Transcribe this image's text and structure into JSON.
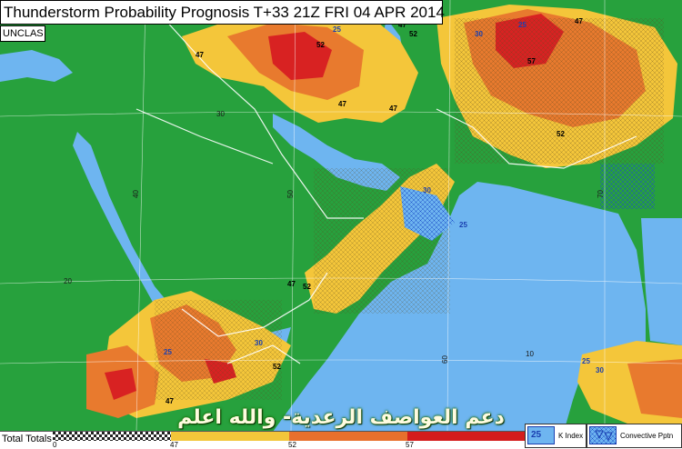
{
  "title": "Thunderstorm Probability Prognosis T+33 21Z FRI 04 APR 2014",
  "classification": "UNCLAS",
  "overlay_text": "دعم العواصف الرعدية- والله اعلم",
  "scale": {
    "label": "Total Totals",
    "ticks": [
      "0",
      "47",
      "52",
      "57"
    ],
    "colors": [
      "#d8d8d8",
      "#f3c63a",
      "#e8702c",
      "#d41c1c"
    ]
  },
  "legend": {
    "k_index_value": "25",
    "k_index_label": "K Index",
    "convective_label": "Convective Pptn"
  },
  "map_labels": {
    "lat_30": "30",
    "lat_20": "20",
    "lat_10": "10",
    "lon_40": "40",
    "lon_50": "50",
    "lon_60": "60",
    "lon_70": "70"
  },
  "contour_labels": [
    "47",
    "52",
    "47",
    "52",
    "47",
    "25",
    "30",
    "25",
    "47",
    "52",
    "57",
    "47",
    "30",
    "25",
    "52",
    "47",
    "25",
    "30",
    "47",
    "52",
    "25",
    "30"
  ],
  "colors": {
    "land": "#27a13d",
    "sea": "#6eb5f0",
    "tt47": "#f4c63a",
    "tt52": "#e87a2e",
    "tt57": "#d82222",
    "ki_dot": "#1a3fb0",
    "convective": "#2d6fd8"
  }
}
